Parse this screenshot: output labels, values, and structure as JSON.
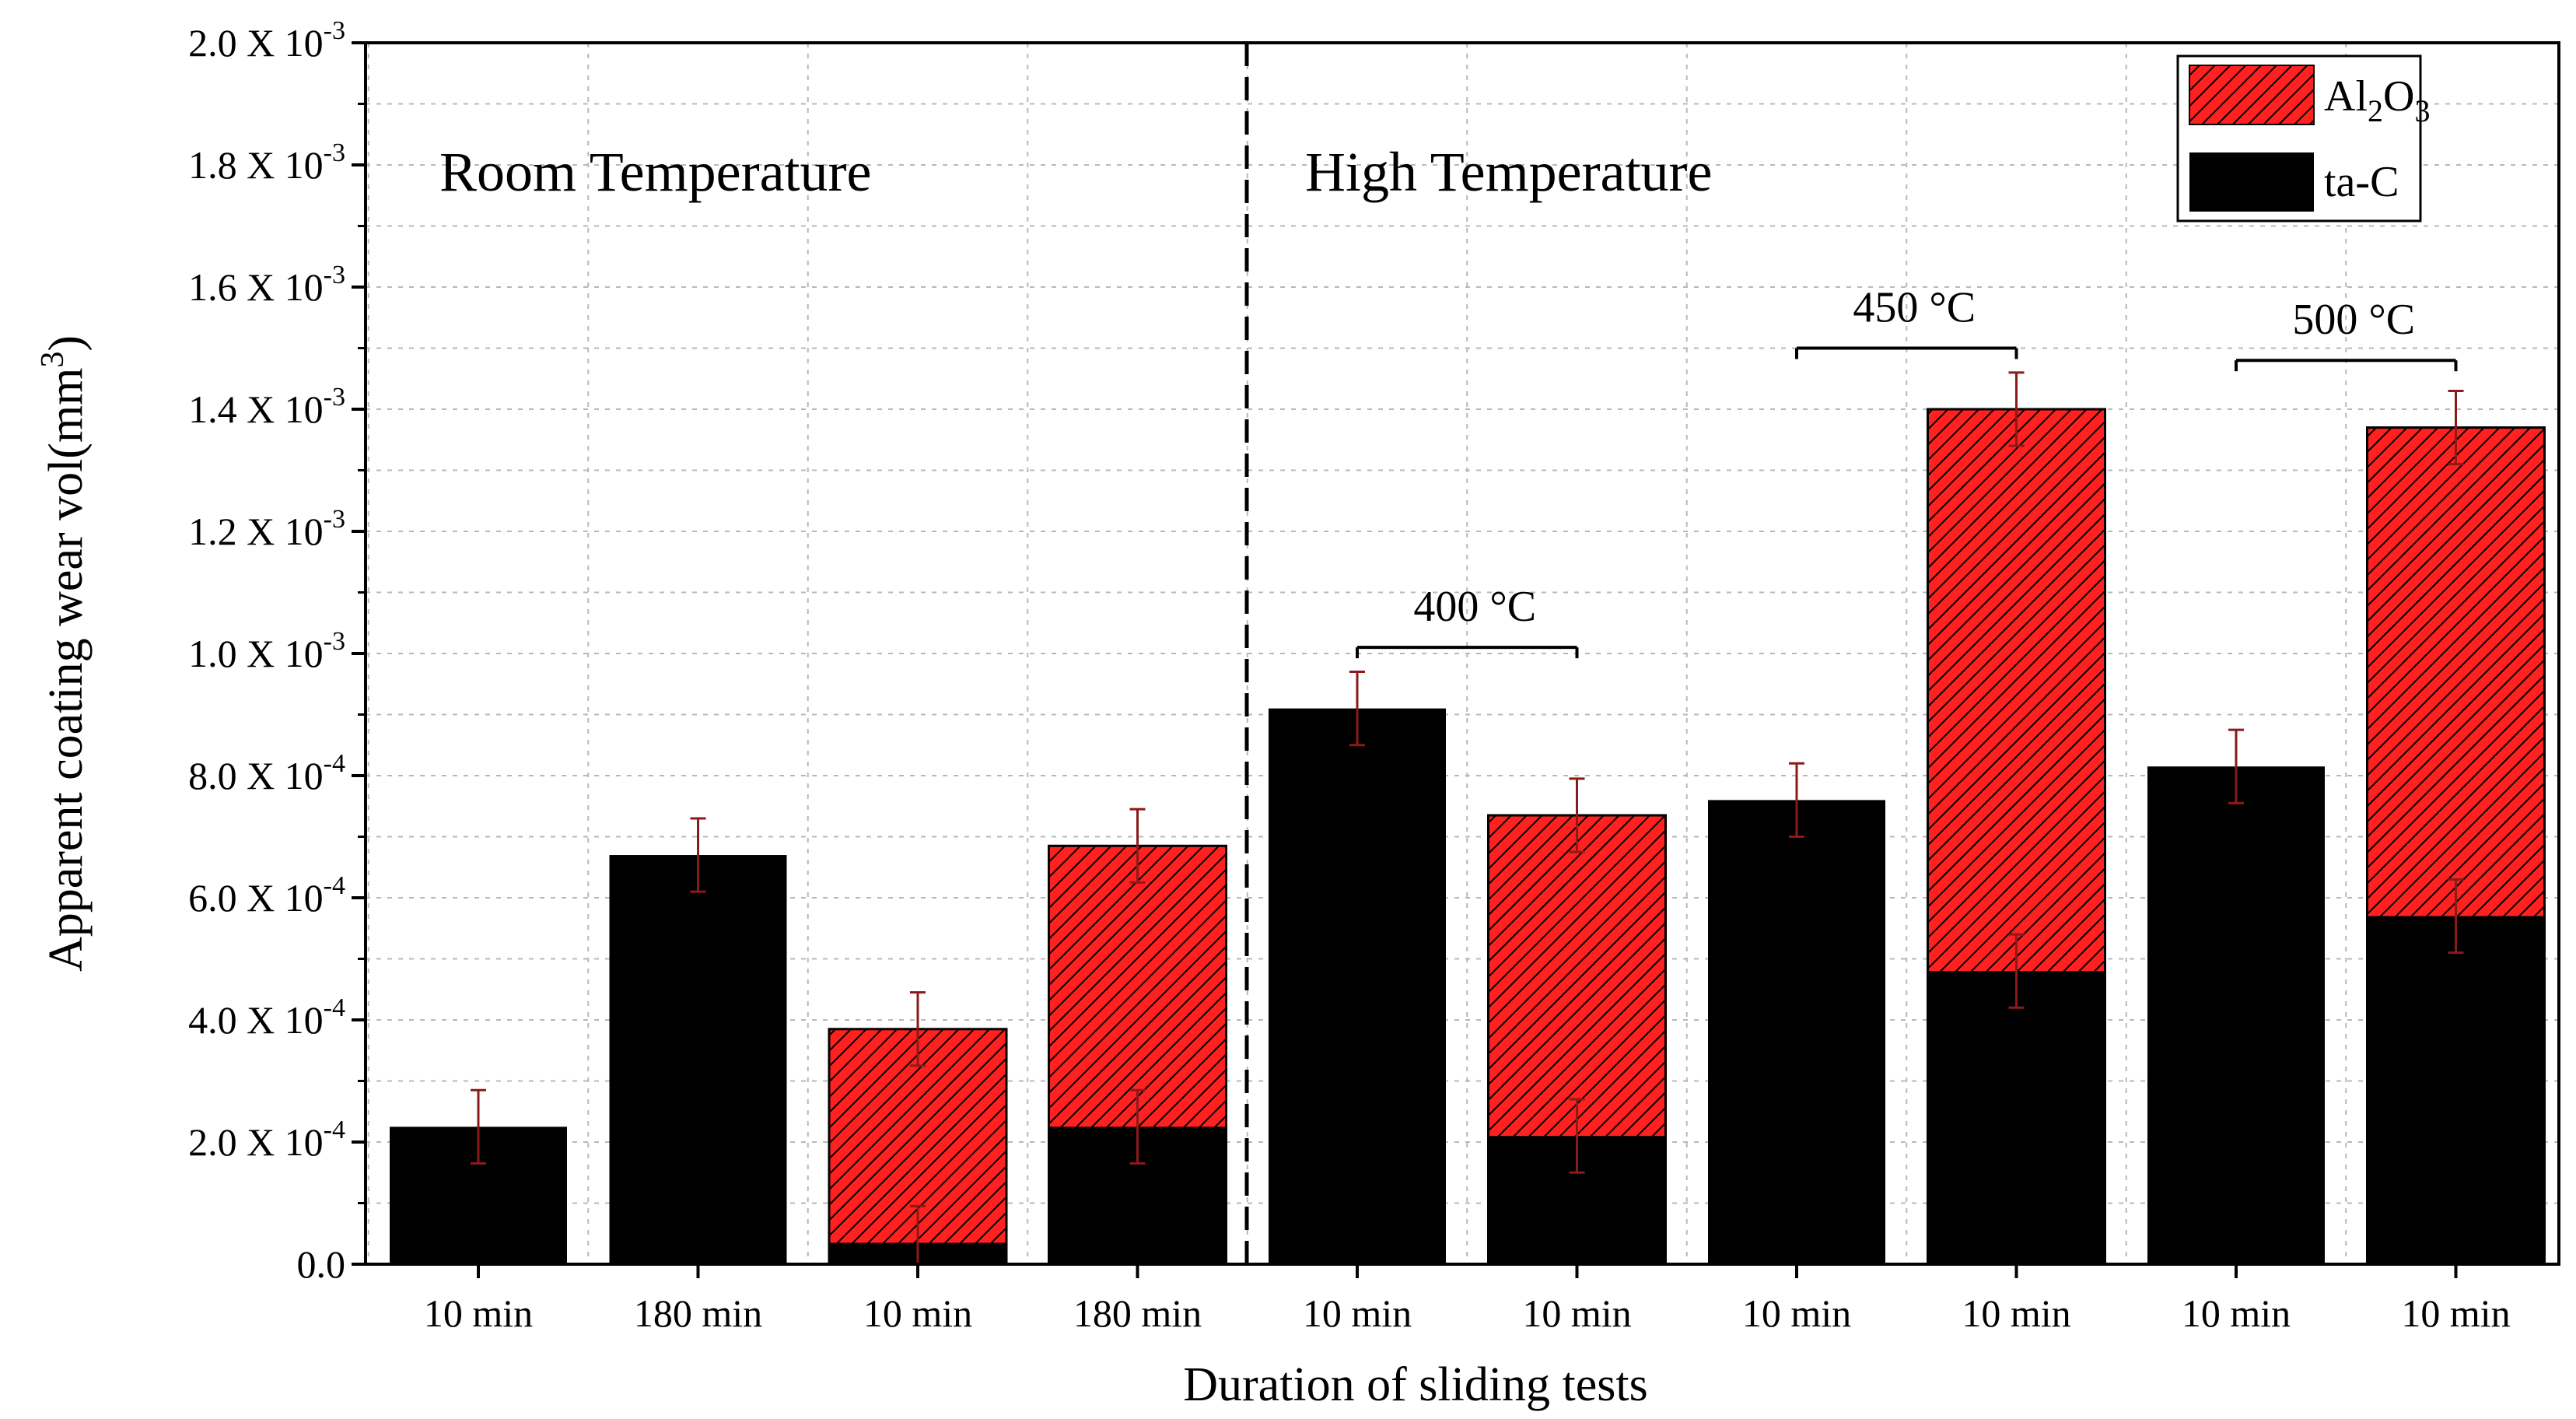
{
  "chart_data": {
    "type": "bar",
    "stacked": true,
    "xlabel": "Duration of sliding tests",
    "ylabel": "Apparent coating wear vol(mm",
    "ylabel_sup": "3",
    "ylabel_end": ")",
    "ylim": [
      0,
      0.002
    ],
    "grid": true,
    "legend_position": "top-right",
    "yticks": [
      {
        "value": 0.0,
        "label": "0.0",
        "exp": ""
      },
      {
        "value": 0.0002,
        "label": "2.0 X 10",
        "exp": "-4"
      },
      {
        "value": 0.0004,
        "label": "4.0 X 10",
        "exp": "-4"
      },
      {
        "value": 0.0006,
        "label": "6.0 X 10",
        "exp": "-4"
      },
      {
        "value": 0.0008,
        "label": "8.0 X 10",
        "exp": "-4"
      },
      {
        "value": 0.001,
        "label": "1.0 X 10",
        "exp": "-3"
      },
      {
        "value": 0.0012,
        "label": "1.2 X 10",
        "exp": "-3"
      },
      {
        "value": 0.0014,
        "label": "1.4 X 10",
        "exp": "-3"
      },
      {
        "value": 0.0016,
        "label": "1.6 X 10",
        "exp": "-3"
      },
      {
        "value": 0.0018,
        "label": "1.8 X 10",
        "exp": "-3"
      },
      {
        "value": 0.002,
        "label": "2.0 X 10",
        "exp": "-3"
      }
    ],
    "categories": [
      "10 min",
      "180 min",
      "10 min",
      "180 min",
      "10 min",
      "10 min",
      "10 min",
      "10 min",
      "10 min",
      "10 min"
    ],
    "series": [
      {
        "name": "ta-C",
        "color": "#000000",
        "values": [
          0.000225,
          0.00067,
          3.5e-05,
          0.000225,
          0.00091,
          0.00021,
          0.00076,
          0.00048,
          0.000815,
          0.00057
        ],
        "errors": [
          6e-05,
          6e-05,
          6e-05,
          6e-05,
          6e-05,
          6e-05,
          6e-05,
          6e-05,
          6e-05,
          6e-05
        ],
        "error_color": "#8b1a1a"
      },
      {
        "name": "Al2O3",
        "color": "#ff2020",
        "hatch_color": "#000000",
        "totals": [
          null,
          null,
          0.000385,
          0.000685,
          null,
          0.000735,
          null,
          0.0014,
          null,
          0.00137
        ],
        "errors": [
          null,
          null,
          6e-05,
          6e-05,
          null,
          6e-05,
          null,
          6e-05,
          null,
          6e-05
        ],
        "error_color": "#8b1a1a"
      }
    ],
    "legend": [
      {
        "series": "Al2O3",
        "label_main": "Al",
        "sub1": "2",
        "mid": "O",
        "sub2": "3"
      },
      {
        "series": "ta-C",
        "label_main": "ta-C"
      }
    ],
    "divider_after_index": 3,
    "annotations": {
      "regions": [
        {
          "text": "Room Temperature",
          "side": "left"
        },
        {
          "text": "High Temperature",
          "side": "right"
        }
      ],
      "temperature_brackets": [
        {
          "text": "400 °C",
          "from": 4,
          "to": 5,
          "level": 0.00101
        },
        {
          "text": "450 °C",
          "from": 6,
          "to": 7,
          "level": 0.0015
        },
        {
          "text": "500 °C",
          "from": 8,
          "to": 9,
          "level": 0.00148
        }
      ]
    }
  }
}
